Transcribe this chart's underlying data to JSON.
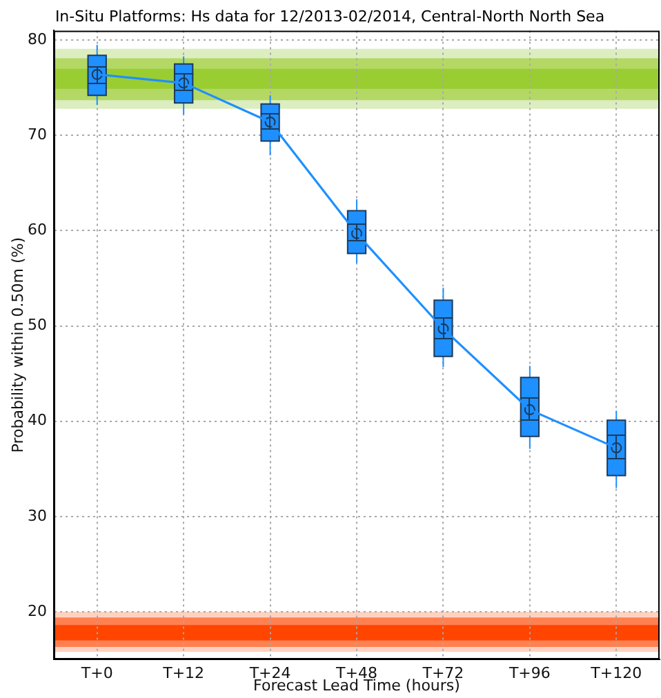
{
  "chart_data": {
    "type": "box",
    "title": "In-Situ Platforms: Hs data for 12/2013-02/2014, Central-North North Sea",
    "xlabel": "Forecast Lead Time (hours)",
    "ylabel": "Probability within 0.50m (%)",
    "categories": [
      "T+0",
      "T+12",
      "T+24",
      "T+48",
      "T+72",
      "T+96",
      "T+120"
    ],
    "series": [
      {
        "color": "#1e90ff",
        "boxes": [
          {
            "low": 73.2,
            "q1": 74.2,
            "median": 76.4,
            "q3": 78.4,
            "high": 79.5
          },
          {
            "low": 72.2,
            "q1": 73.4,
            "median": 75.5,
            "q3": 77.5,
            "high": 78.3
          },
          {
            "low": 67.9,
            "q1": 69.4,
            "median": 71.4,
            "q3": 73.3,
            "high": 74.2
          },
          {
            "low": 56.6,
            "q1": 57.6,
            "median": 59.7,
            "q3": 62.1,
            "high": 63.3
          },
          {
            "low": 45.7,
            "q1": 46.8,
            "median": 49.7,
            "q3": 52.7,
            "high": 54.0
          },
          {
            "low": 37.1,
            "q1": 38.4,
            "median": 41.2,
            "q3": 44.6,
            "high": 45.8
          },
          {
            "low": 33.0,
            "q1": 34.3,
            "median": 37.2,
            "q3": 40.1,
            "high": 41.1
          }
        ]
      },
      {
        "type": "line",
        "color": "#1e90ff",
        "values": [
          76.4,
          75.5,
          71.4,
          59.7,
          49.7,
          41.2,
          37.2
        ],
        "errors": [
          [
            75.5,
            77.2
          ],
          [
            74.7,
            76.5
          ],
          [
            70.7,
            72.2
          ],
          [
            59.0,
            60.7
          ],
          [
            48.6,
            50.9
          ],
          [
            40.1,
            42.4
          ],
          [
            36.1,
            38.5
          ]
        ]
      }
    ],
    "bands": [
      {
        "axis": "y",
        "from": 72.8,
        "to": 79.1,
        "color": "#dcedc0"
      },
      {
        "axis": "y",
        "from": 73.7,
        "to": 78.1,
        "color": "#b4d864"
      },
      {
        "axis": "y",
        "from": 74.9,
        "to": 77.0,
        "color": "#9acd32"
      },
      {
        "axis": "y",
        "from": 15.8,
        "to": 20.0,
        "color": "#ffd2c0"
      },
      {
        "axis": "y",
        "from": 16.3,
        "to": 19.4,
        "color": "#ff8050"
      },
      {
        "axis": "y",
        "from": 17.0,
        "to": 18.6,
        "color": "#ff4500"
      }
    ],
    "ylim": [
      15,
      81
    ],
    "yticks": [
      20,
      30,
      40,
      50,
      60,
      70,
      80
    ],
    "grid": true
  }
}
